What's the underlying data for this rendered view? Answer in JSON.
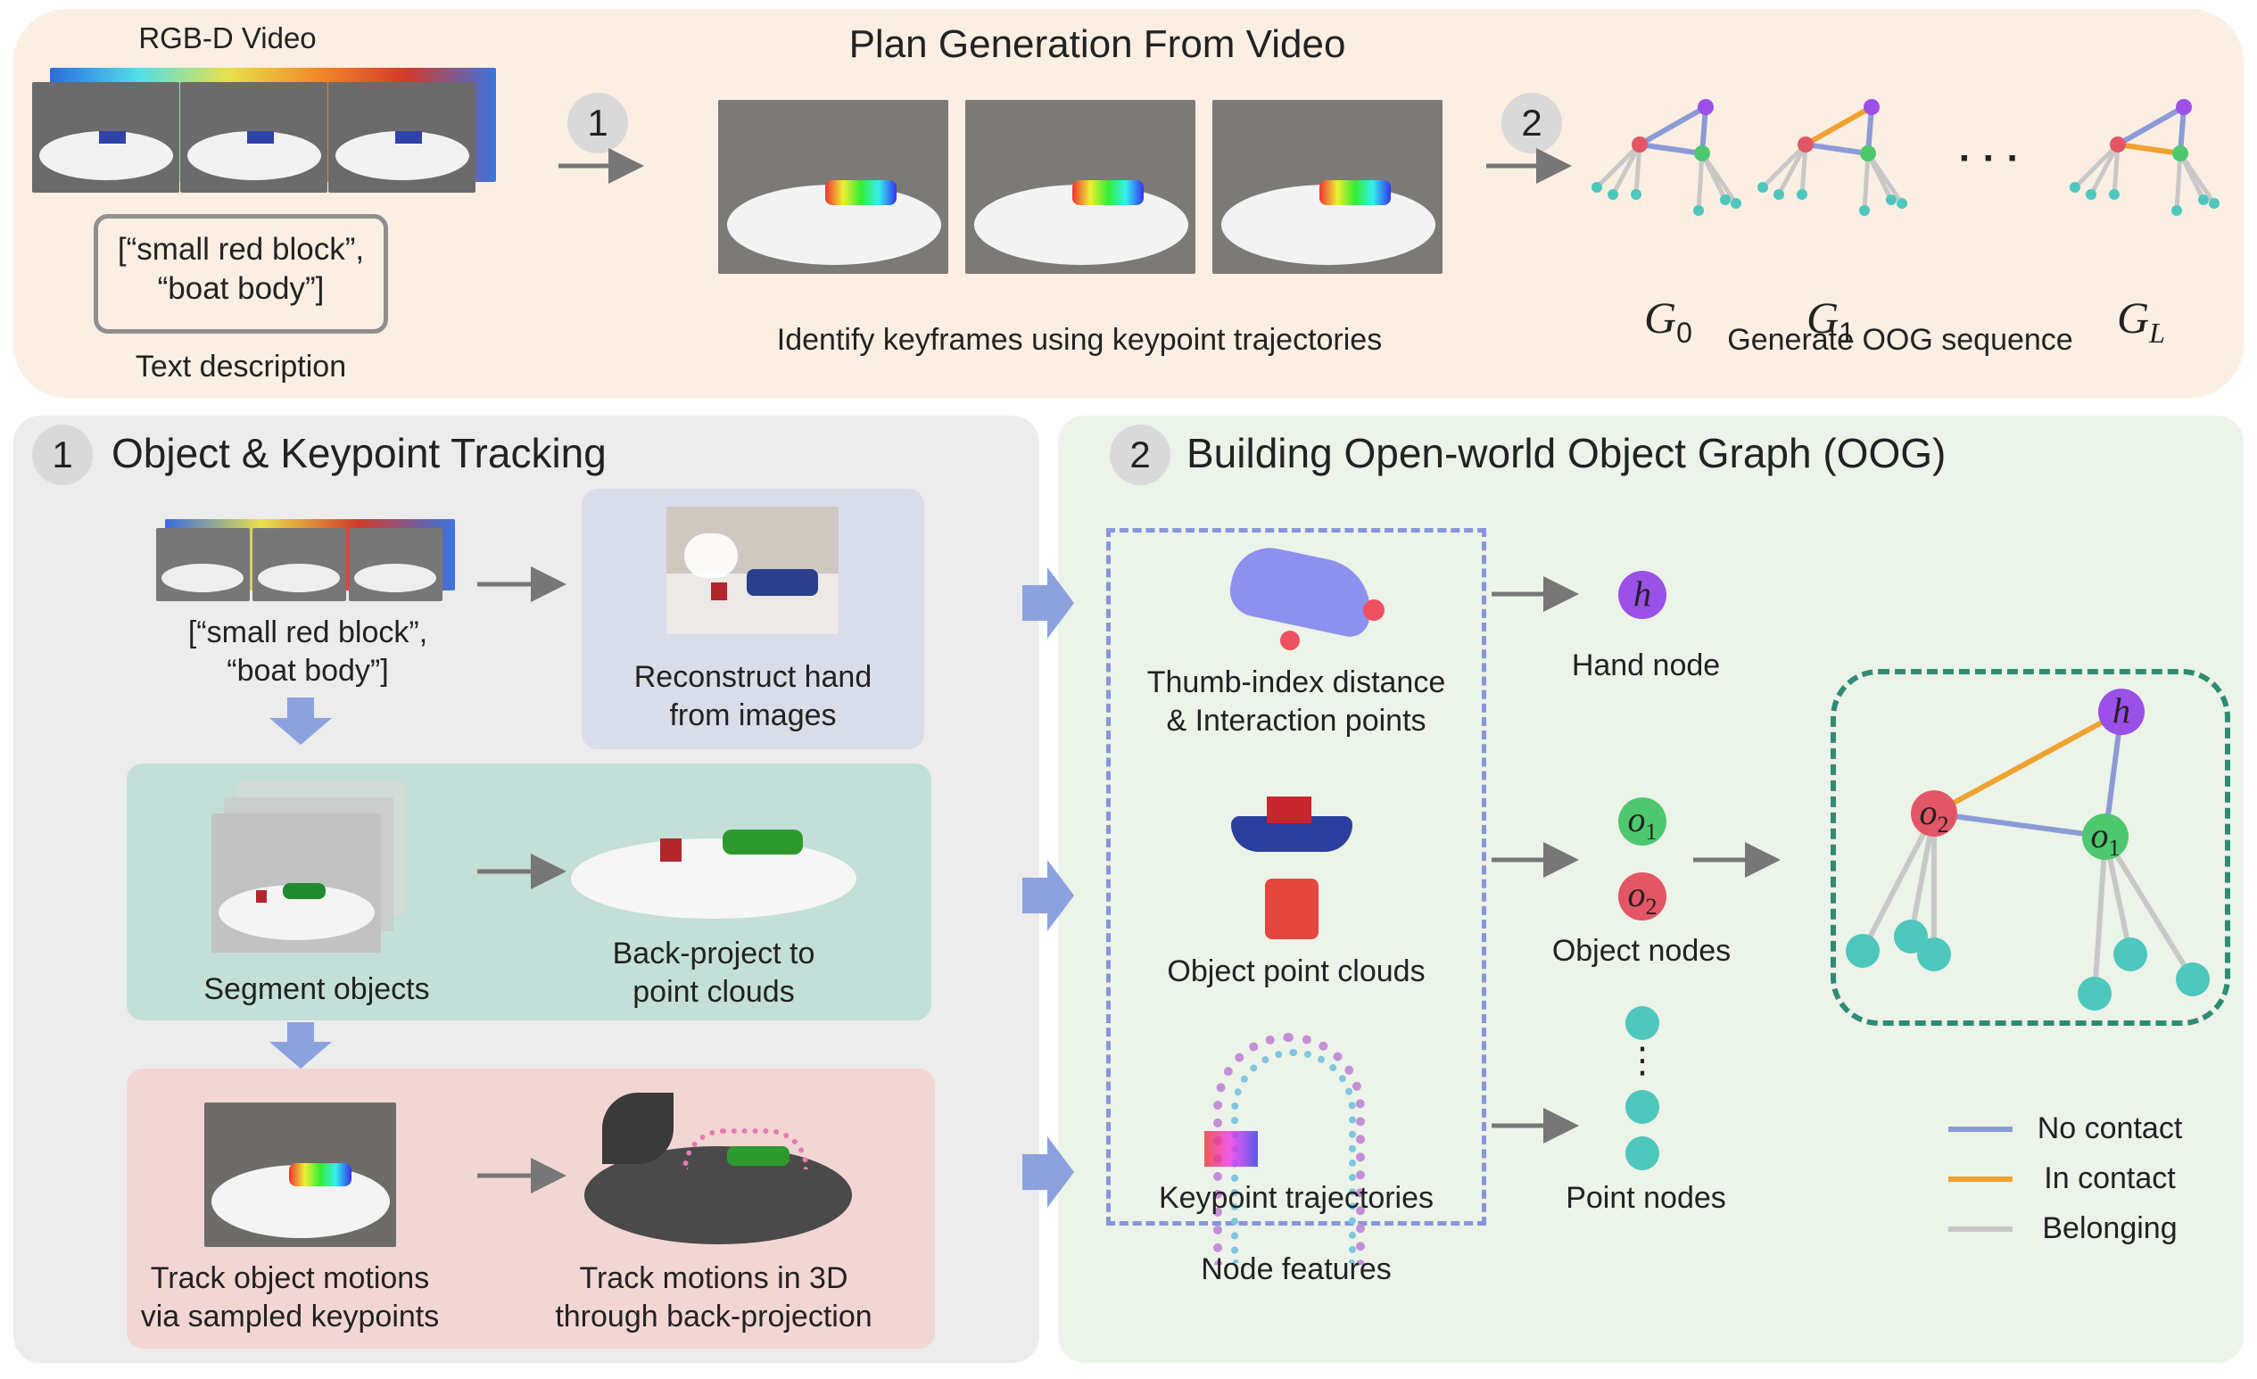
{
  "top": {
    "title": "Plan Generation From Video",
    "video_label": "RGB-D Video",
    "text_box": "[“small red block”,\n“boat body”]",
    "text_caption": "Text description",
    "step1": "1",
    "step2": "2",
    "keyframe_caption": "Identify keyframes using keypoint trajectories",
    "oog_caption": "Generate OOG sequence",
    "graph_labels": [
      "G",
      "G",
      "G"
    ],
    "graph_subs": [
      "0",
      "1",
      "L"
    ],
    "ellipsis": "·  ·  ·"
  },
  "left": {
    "badge": "1",
    "title": "Object & Keypoint Tracking",
    "input_text": "[“small red block”,\n“boat body”]",
    "hand_caption": "Reconstruct hand\nfrom images",
    "segment_caption": "Segment objects",
    "backproject_caption": "Back-project to\npoint clouds",
    "track_caption": "Track object motions\nvia sampled keypoints",
    "track3d_caption": "Track motions in 3D\nthrough back-projection"
  },
  "right": {
    "badge": "2",
    "title": "Building Open-world Object Graph (OOG)",
    "thumb_caption": "Thumb-index distance\n& Interaction points",
    "pointcloud_caption": "Object point clouds",
    "keypoint_caption": "Keypoint trajectories",
    "node_features": "Node features",
    "hand_node": "Hand node",
    "object_nodes": "Object nodes",
    "point_nodes": "Point nodes",
    "h": "h",
    "o1": "o",
    "o1_sub": "1",
    "o2": "o",
    "o2_sub": "2",
    "vdots": "⋮",
    "legend": [
      {
        "label": "No contact",
        "color": "#8a9bd6"
      },
      {
        "label": "In contact",
        "color": "#eea22f"
      },
      {
        "label": "Belonging",
        "color": "#c8c8c8"
      }
    ]
  },
  "colors": {
    "top_bg": "#fbeee3",
    "left_bg": "#ececec",
    "right_bg": "#ecf3e8",
    "hand_box": "#d9dce9",
    "segment_box": "#c3dfd8",
    "track_box": "#f2d6d3",
    "hand_node": "#9b50e8",
    "red_node": "#e25666",
    "green_node": "#4ec86e",
    "point_node": "#4ec7bd",
    "dashed_blue": "#8696dc",
    "dashed_green": "#2f8c73",
    "arrow_blue": "#8ca2de"
  }
}
